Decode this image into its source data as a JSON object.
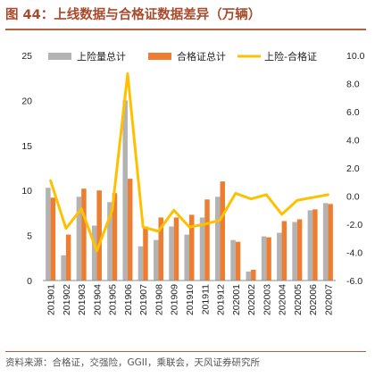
{
  "figure": {
    "title": "图 44：上线数据与合格证数据差异（万辆）",
    "source": "资料来源：合格证，交强险，GGII，乘联会，天风证券研究所"
  },
  "chart_data": {
    "type": "bar",
    "categories": [
      "201901",
      "201902",
      "201903",
      "201904",
      "201905",
      "201906",
      "201907",
      "201908",
      "201909",
      "201910",
      "201911",
      "201912",
      "202001",
      "202002",
      "202003",
      "202004",
      "202005",
      "202006",
      "202007"
    ],
    "series": [
      {
        "name": "上险量总计",
        "type": "bar",
        "axis": "left",
        "color": "#b3b3b3",
        "values": [
          10.3,
          2.8,
          9.3,
          6.1,
          8.7,
          20.0,
          3.8,
          4.5,
          6.0,
          5.1,
          7.0,
          9.3,
          4.5,
          1.0,
          4.9,
          5.3,
          6.5,
          7.8,
          8.6
        ]
      },
      {
        "name": "合格证总计",
        "type": "bar",
        "axis": "left",
        "color": "#ed7d31",
        "values": [
          9.2,
          5.1,
          10.2,
          10.0,
          9.7,
          11.3,
          6.0,
          7.0,
          7.0,
          7.3,
          9.0,
          11.0,
          4.3,
          1.2,
          4.8,
          6.6,
          6.8,
          7.9,
          8.5
        ]
      },
      {
        "name": "上险-合格证",
        "type": "line",
        "axis": "right",
        "color": "#ffc000",
        "values": [
          1.1,
          -2.3,
          -0.9,
          -3.9,
          -1.0,
          8.7,
          -2.2,
          -2.5,
          -1.0,
          -2.2,
          -2.0,
          -1.7,
          0.2,
          -0.2,
          0.1,
          -1.3,
          -0.3,
          -0.1,
          0.1
        ]
      }
    ],
    "left_axis": {
      "ylim": [
        0,
        25
      ],
      "ticks": [
        "0",
        "5",
        "10",
        "15",
        "20",
        "25"
      ]
    },
    "right_axis": {
      "ylim": [
        -6,
        10
      ],
      "ticks": [
        "-6.0",
        "-4.0",
        "-2.0",
        "0.0",
        "2.0",
        "4.0",
        "6.0",
        "8.0",
        "10.0"
      ]
    },
    "legend_position": "top",
    "grid": false
  }
}
